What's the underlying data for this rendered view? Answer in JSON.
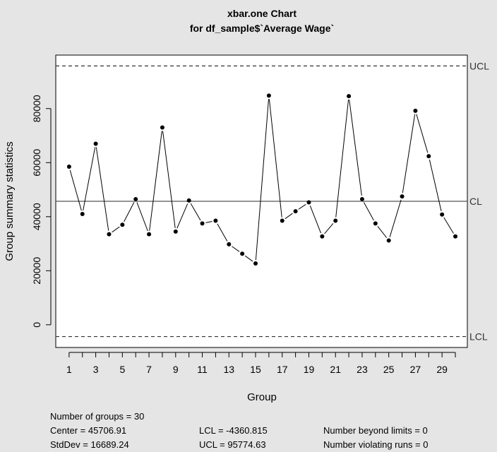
{
  "chart_data": {
    "type": "line",
    "title": "xbar.one Chart",
    "subtitle": "for df_sample$`Average Wage`",
    "xlabel": "Group",
    "ylabel": "Group summary statistics",
    "x": [
      1,
      2,
      3,
      4,
      5,
      6,
      7,
      8,
      9,
      10,
      11,
      12,
      13,
      14,
      15,
      16,
      17,
      18,
      19,
      20,
      21,
      22,
      23,
      24,
      25,
      26,
      27,
      28,
      29,
      30
    ],
    "values": [
      58500,
      41000,
      67000,
      33500,
      37000,
      46500,
      33500,
      73000,
      34500,
      46000,
      37500,
      38500,
      29800,
      26300,
      22700,
      84800,
      38500,
      42000,
      45300,
      32700,
      38500,
      84600,
      46500,
      37500,
      31200,
      47500,
      79200,
      62400,
      40800,
      32700
    ],
    "x_ticks": [
      1,
      3,
      5,
      7,
      9,
      11,
      13,
      15,
      17,
      19,
      21,
      23,
      25,
      27,
      29
    ],
    "y_ticks": [
      0,
      20000,
      40000,
      60000,
      80000
    ],
    "ylim": [
      -8400,
      99800
    ],
    "xlim": [
      0,
      30.9
    ],
    "control_lines": {
      "ucl": {
        "label": "UCL",
        "value": 95774.63
      },
      "cl": {
        "label": "CL",
        "value": 45706.91
      },
      "lcl": {
        "label": "LCL",
        "value": -4360.815
      }
    },
    "grid": false,
    "legend": "none"
  },
  "stats": {
    "groups": "Number of groups = 30",
    "center": "Center = 45706.91",
    "stddev": "StdDev = 16689.24",
    "lcl": "LCL = -4360.815",
    "ucl": "UCL = 95774.63",
    "beyond": "Number beyond limits = 0",
    "violating": "Number violating runs = 0"
  }
}
